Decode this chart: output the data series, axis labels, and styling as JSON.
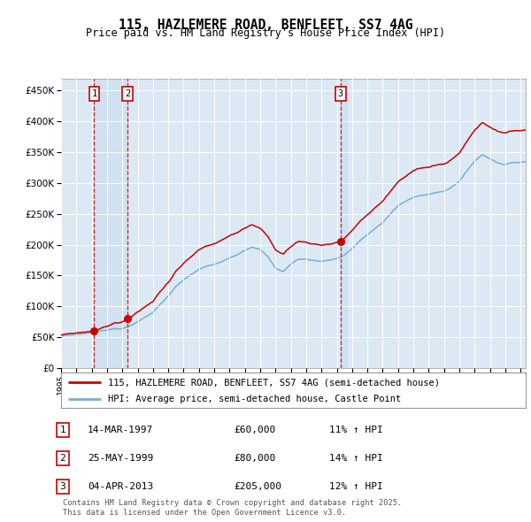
{
  "title1": "115, HAZLEMERE ROAD, BENFLEET, SS7 4AG",
  "title2": "Price paid vs. HM Land Registry's House Price Index (HPI)",
  "legend_red": "115, HAZLEMERE ROAD, BENFLEET, SS7 4AG (semi-detached house)",
  "legend_blue": "HPI: Average price, semi-detached house, Castle Point",
  "transactions": [
    {
      "num": "1",
      "date": "14-MAR-1997",
      "price": 60000,
      "pct": "11%",
      "dir": "↑"
    },
    {
      "num": "2",
      "date": "25-MAY-1999",
      "price": 80000,
      "pct": "14%",
      "dir": "↑"
    },
    {
      "num": "3",
      "date": "04-APR-2013",
      "price": 205000,
      "pct": "12%",
      "dir": "↑"
    }
  ],
  "footer1": "Contains HM Land Registry data © Crown copyright and database right 2025.",
  "footer2": "This data is licensed under the Open Government Licence v3.0.",
  "ylim": [
    0,
    470000
  ],
  "yticks": [
    0,
    50000,
    100000,
    150000,
    200000,
    250000,
    300000,
    350000,
    400000,
    450000
  ],
  "bg_color": "#dce9f5",
  "red_color": "#cc0000",
  "blue_color": "#7aaed0",
  "vline_color": "#cc0000",
  "box_color": "#cc0000",
  "dot_color": "#cc0000",
  "shade_alpha": 0.25
}
